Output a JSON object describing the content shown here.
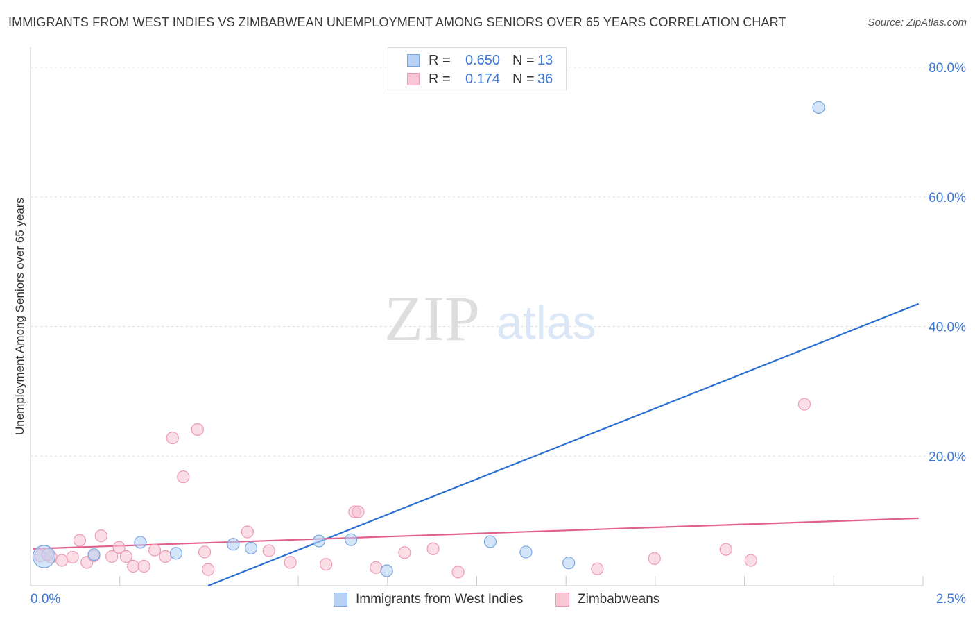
{
  "header": {
    "title": "IMMIGRANTS FROM WEST INDIES VS ZIMBABWEAN UNEMPLOYMENT AMONG SENIORS OVER 65 YEARS CORRELATION CHART",
    "source": "Source: ZipAtlas.com"
  },
  "watermark": {
    "zip": "ZIP",
    "atlas": "atlas"
  },
  "legend": {
    "r_label": "R =",
    "n_label": "N =",
    "series": [
      {
        "r": "0.650",
        "n": "13"
      },
      {
        "r": "0.174",
        "n": "36"
      }
    ]
  },
  "bottom_legend": {
    "items": [
      {
        "label": "Immigrants from West Indies"
      },
      {
        "label": "Zimbabweans"
      }
    ]
  },
  "colors": {
    "blue_fill": "#b8d2f5",
    "blue_stroke": "#7aa6e0",
    "blue_line": "#2b6fd3",
    "pink_fill": "#f8c6d5",
    "pink_stroke": "#ec9ab5",
    "pink_line": "#e0608f",
    "tick_text": "#3b78d8",
    "grid": "#dddddd"
  },
  "chart_data": {
    "type": "scatter",
    "title": "IMMIGRANTS FROM WEST INDIES VS ZIMBABWEAN UNEMPLOYMENT AMONG SENIORS OVER 65 YEARS CORRELATION CHART",
    "xlabel": "",
    "ylabel": "Unemployment Among Seniors over 65 years",
    "xlim": [
      0,
      2.5
    ],
    "ylim": [
      0,
      80
    ],
    "x_tick_labels": [
      "0.0%",
      "2.5%"
    ],
    "y_ticks": [
      20,
      40,
      60,
      80
    ],
    "y_tick_labels": [
      "20.0%",
      "40.0%",
      "60.0%",
      "80.0%"
    ],
    "grid": true,
    "series": [
      {
        "name": "Immigrants from West Indies",
        "points": [
          {
            "x": 0.03,
            "y": 4.5,
            "big": true
          },
          {
            "x": 0.17,
            "y": 4.8
          },
          {
            "x": 0.3,
            "y": 6.7
          },
          {
            "x": 0.4,
            "y": 5.0
          },
          {
            "x": 0.56,
            "y": 6.4
          },
          {
            "x": 0.61,
            "y": 5.8
          },
          {
            "x": 0.8,
            "y": 6.9
          },
          {
            "x": 0.89,
            "y": 7.1
          },
          {
            "x": 0.99,
            "y": 2.3
          },
          {
            "x": 1.28,
            "y": 6.8
          },
          {
            "x": 1.38,
            "y": 5.2
          },
          {
            "x": 1.5,
            "y": 3.5
          },
          {
            "x": 2.2,
            "y": 73.8
          }
        ],
        "trend": {
          "x": [
            0.0,
            2.48
          ],
          "y": [
            -10.7,
            43.5
          ]
        }
      },
      {
        "name": "Zimbabweans",
        "points": [
          {
            "x": 0.02,
            "y": 4.6
          },
          {
            "x": 0.05,
            "y": 4.4
          },
          {
            "x": 0.08,
            "y": 3.9
          },
          {
            "x": 0.11,
            "y": 4.4
          },
          {
            "x": 0.13,
            "y": 7.0
          },
          {
            "x": 0.15,
            "y": 3.6
          },
          {
            "x": 0.17,
            "y": 4.6
          },
          {
            "x": 0.19,
            "y": 7.7
          },
          {
            "x": 0.22,
            "y": 4.5
          },
          {
            "x": 0.24,
            "y": 5.9
          },
          {
            "x": 0.26,
            "y": 4.5
          },
          {
            "x": 0.28,
            "y": 3.0
          },
          {
            "x": 0.31,
            "y": 3.0
          },
          {
            "x": 0.34,
            "y": 5.5
          },
          {
            "x": 0.37,
            "y": 4.5
          },
          {
            "x": 0.39,
            "y": 22.8
          },
          {
            "x": 0.42,
            "y": 16.8
          },
          {
            "x": 0.46,
            "y": 24.1
          },
          {
            "x": 0.48,
            "y": 5.2
          },
          {
            "x": 0.49,
            "y": 2.5
          },
          {
            "x": 0.6,
            "y": 8.3
          },
          {
            "x": 0.66,
            "y": 5.4
          },
          {
            "x": 0.72,
            "y": 3.6
          },
          {
            "x": 0.82,
            "y": 3.3
          },
          {
            "x": 0.9,
            "y": 11.4
          },
          {
            "x": 0.91,
            "y": 11.4
          },
          {
            "x": 0.96,
            "y": 2.8
          },
          {
            "x": 1.04,
            "y": 5.1
          },
          {
            "x": 1.12,
            "y": 5.7
          },
          {
            "x": 1.19,
            "y": 2.1
          },
          {
            "x": 1.58,
            "y": 2.6
          },
          {
            "x": 1.74,
            "y": 4.2
          },
          {
            "x": 1.94,
            "y": 5.6
          },
          {
            "x": 2.01,
            "y": 3.9
          },
          {
            "x": 2.16,
            "y": 28.0
          },
          {
            "x": 0.04,
            "y": 4.8
          }
        ],
        "trend": {
          "x": [
            0.0,
            2.48
          ],
          "y": [
            5.7,
            10.4
          ]
        }
      }
    ]
  }
}
